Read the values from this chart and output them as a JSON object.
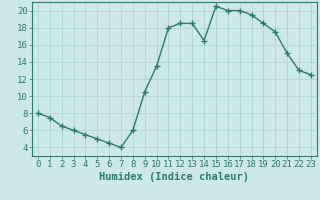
{
  "x": [
    0,
    1,
    2,
    3,
    4,
    5,
    6,
    7,
    8,
    9,
    10,
    11,
    12,
    13,
    14,
    15,
    16,
    17,
    18,
    19,
    20,
    21,
    22,
    23
  ],
  "y": [
    8,
    7.5,
    6.5,
    6,
    5.5,
    5,
    4.5,
    4,
    6,
    10.5,
    13.5,
    18,
    18.5,
    18.5,
    16.5,
    20.5,
    20,
    20,
    19.5,
    18.5,
    17.5,
    15,
    13,
    12.5
  ],
  "line_color": "#2d7a6e",
  "marker": "+",
  "marker_size": 4,
  "marker_lw": 1.0,
  "line_width": 1.0,
  "background_color": "#cce9e7",
  "grid_color": "#b8d8d5",
  "xlabel": "Humidex (Indice chaleur)",
  "xlim": [
    -0.5,
    23.5
  ],
  "ylim": [
    3,
    21
  ],
  "yticks": [
    4,
    6,
    8,
    10,
    12,
    14,
    16,
    18,
    20
  ],
  "xticks": [
    0,
    1,
    2,
    3,
    4,
    5,
    6,
    7,
    8,
    9,
    10,
    11,
    12,
    13,
    14,
    15,
    16,
    17,
    18,
    19,
    20,
    21,
    22,
    23
  ],
  "tick_color": "#2d7a6e",
  "label_fontsize": 6.5,
  "xlabel_fontsize": 7.5,
  "spine_color": "#2d7a6e"
}
